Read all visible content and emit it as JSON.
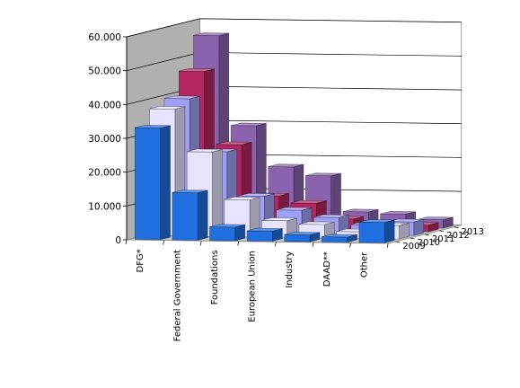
{
  "chart_data": {
    "type": "bar",
    "subtype": "3d-clustered-depth",
    "title": "",
    "xlabel": "",
    "ylabel": "",
    "ylim": [
      0,
      60000
    ],
    "y_ticks": [
      "0",
      "10.000",
      "20.000",
      "30.000",
      "40.000",
      "50.000",
      "60.000"
    ],
    "categories": [
      "DFG*",
      "Federal Government",
      "Foundations",
      "European Union",
      "Industry",
      "DAAD**",
      "Other"
    ],
    "series": [
      {
        "name": "2009",
        "color": "#1f6fe0",
        "values": [
          33000,
          14000,
          4000,
          3000,
          2000,
          1500,
          6000
        ]
      },
      {
        "name": "2010",
        "color": "#e6e4ff",
        "values": [
          37500,
          25000,
          11000,
          5000,
          4000,
          2000,
          4000
        ]
      },
      {
        "name": "2011",
        "color": "#9f9ff6",
        "values": [
          39500,
          24000,
          11000,
          7000,
          5000,
          3000,
          4000
        ]
      },
      {
        "name": "2012",
        "color": "#b32660",
        "values": [
          46500,
          25000,
          10000,
          8000,
          3500,
          2000,
          2000
        ]
      },
      {
        "name": "2013",
        "color": "#8a62ae",
        "values": [
          56000,
          29500,
          17500,
          15000,
          4500,
          4000,
          2500
        ]
      }
    ],
    "grid": true,
    "legend": "none (series labels on depth axis)"
  }
}
